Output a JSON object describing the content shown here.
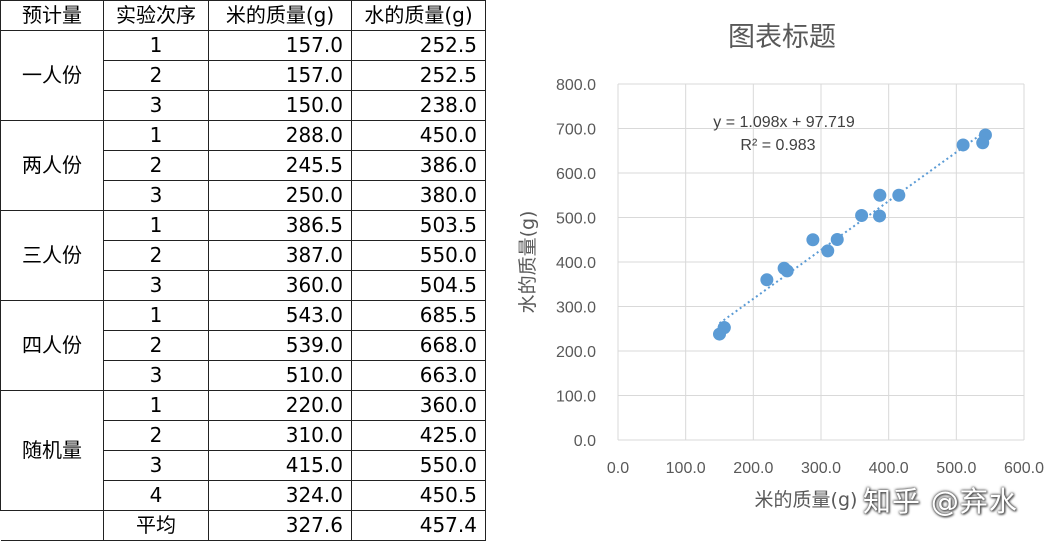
{
  "table": {
    "headers": [
      "预计量",
      "实验次序",
      "米的质量(g)",
      "水的质量(g)"
    ],
    "groups": [
      {
        "name": "一人份",
        "rows": [
          {
            "trial": "1",
            "rice": "157.0",
            "water": "252.5"
          },
          {
            "trial": "2",
            "rice": "157.0",
            "water": "252.5"
          },
          {
            "trial": "3",
            "rice": "150.0",
            "water": "238.0"
          }
        ]
      },
      {
        "name": "两人份",
        "rows": [
          {
            "trial": "1",
            "rice": "288.0",
            "water": "450.0"
          },
          {
            "trial": "2",
            "rice": "245.5",
            "water": "386.0"
          },
          {
            "trial": "3",
            "rice": "250.0",
            "water": "380.0"
          }
        ]
      },
      {
        "name": "三人份",
        "rows": [
          {
            "trial": "1",
            "rice": "386.5",
            "water": "503.5"
          },
          {
            "trial": "2",
            "rice": "387.0",
            "water": "550.0"
          },
          {
            "trial": "3",
            "rice": "360.0",
            "water": "504.5"
          }
        ]
      },
      {
        "name": "四人份",
        "rows": [
          {
            "trial": "1",
            "rice": "543.0",
            "water": "685.5"
          },
          {
            "trial": "2",
            "rice": "539.0",
            "water": "668.0"
          },
          {
            "trial": "3",
            "rice": "510.0",
            "water": "663.0"
          }
        ]
      },
      {
        "name": "随机量",
        "rows": [
          {
            "trial": "1",
            "rice": "220.0",
            "water": "360.0"
          },
          {
            "trial": "2",
            "rice": "310.0",
            "water": "425.0"
          },
          {
            "trial": "3",
            "rice": "415.0",
            "water": "550.0"
          },
          {
            "trial": "4",
            "rice": "324.0",
            "water": "450.5"
          }
        ]
      }
    ],
    "average": {
      "label": "平均",
      "rice": "327.6",
      "water": "457.4"
    }
  },
  "chart_data": {
    "type": "scatter",
    "title": "图表标题",
    "xlabel": "米的质量(g)",
    "ylabel": "水的质量(g)",
    "xlim": [
      0,
      600
    ],
    "ylim": [
      0,
      800
    ],
    "x_ticks": [
      "0.0",
      "100.0",
      "200.0",
      "300.0",
      "400.0",
      "500.0",
      "600.0"
    ],
    "y_ticks": [
      "0.0",
      "100.0",
      "200.0",
      "300.0",
      "400.0",
      "500.0",
      "600.0",
      "700.0",
      "800.0"
    ],
    "grid": true,
    "legend": "none",
    "marker_color": "#5B9BD5",
    "points": [
      {
        "x": 157.0,
        "y": 252.5
      },
      {
        "x": 157.0,
        "y": 252.5
      },
      {
        "x": 150.0,
        "y": 238.0
      },
      {
        "x": 288.0,
        "y": 450.0
      },
      {
        "x": 245.5,
        "y": 386.0
      },
      {
        "x": 250.0,
        "y": 380.0
      },
      {
        "x": 386.5,
        "y": 503.5
      },
      {
        "x": 387.0,
        "y": 550.0
      },
      {
        "x": 360.0,
        "y": 504.5
      },
      {
        "x": 543.0,
        "y": 685.5
      },
      {
        "x": 539.0,
        "y": 668.0
      },
      {
        "x": 510.0,
        "y": 663.0
      },
      {
        "x": 220.0,
        "y": 360.0
      },
      {
        "x": 310.0,
        "y": 425.0
      },
      {
        "x": 415.0,
        "y": 550.0
      },
      {
        "x": 324.0,
        "y": 450.5
      }
    ],
    "trendline": {
      "type": "linear",
      "slope": 1.098,
      "intercept": 97.719,
      "x_range": [
        150.0,
        543.0
      ],
      "equation": "y = 1.098x + 97.719",
      "r2": "R² = 0.983",
      "style": "dotted"
    }
  },
  "watermark": "知乎 @弃水"
}
